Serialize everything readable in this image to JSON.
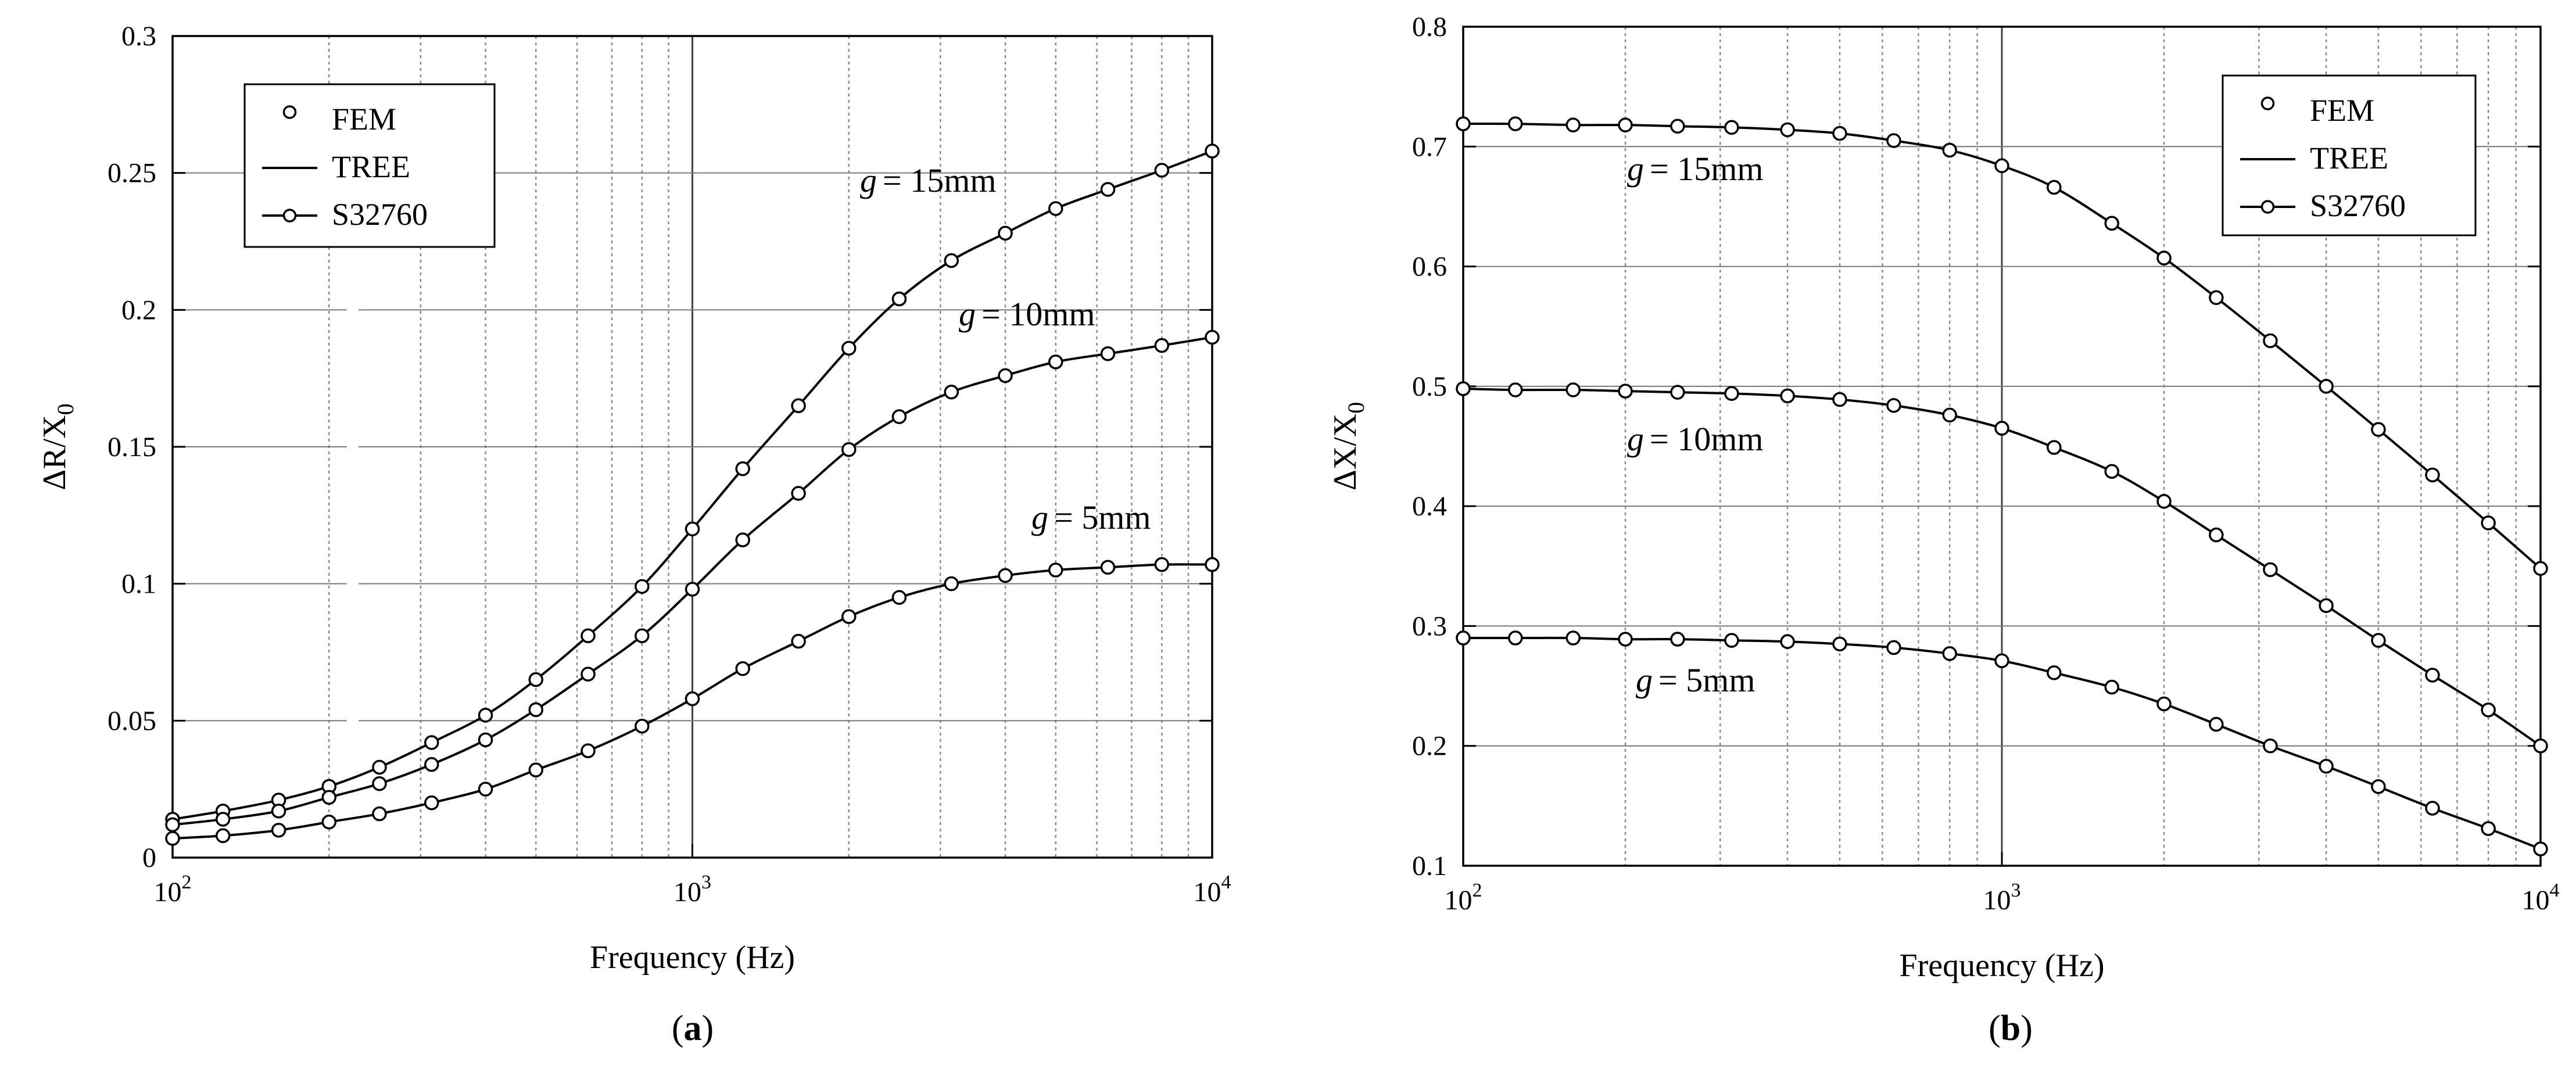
{
  "chart_data": [
    {
      "type": "line",
      "panel_label": "a",
      "panel_label_open": "(",
      "panel_label_close": ")",
      "xlabel": "Frequency (Hz)",
      "ylabel": "ΔR/X",
      "ylabel_subscript": "0",
      "x_scale": "log",
      "xlim": [
        100,
        10000
      ],
      "x_tick_values": [
        100,
        1000,
        10000
      ],
      "x_tick_base": "10",
      "x_tick_exponents": [
        "2",
        "3",
        "4"
      ],
      "ylim": [
        0,
        0.3
      ],
      "y_ticks": [
        "0",
        "0.05",
        "0.1",
        "0.15",
        "0.2",
        "0.25",
        "0.3"
      ],
      "grid": true,
      "legend": {
        "position": "top-left",
        "entries": [
          "FEM",
          "TREE",
          "S32760"
        ]
      },
      "label_var": "g",
      "frequencies": [
        100,
        125,
        160,
        200,
        250,
        315,
        400,
        500,
        630,
        800,
        1000,
        1250,
        1600,
        2000,
        2500,
        3150,
        4000,
        5000,
        6300,
        8000,
        10000
      ],
      "series": [
        {
          "name": "g = 15mm",
          "label_value": "= 15mm",
          "values": [
            0.014,
            0.017,
            0.021,
            0.026,
            0.033,
            0.042,
            0.052,
            0.065,
            0.081,
            0.099,
            0.12,
            0.142,
            0.165,
            0.186,
            0.204,
            0.218,
            0.228,
            0.237,
            0.244,
            0.251,
            0.258
          ]
        },
        {
          "name": "g = 10mm",
          "label_value": "= 10mm",
          "values": [
            0.012,
            0.014,
            0.017,
            0.022,
            0.027,
            0.034,
            0.043,
            0.054,
            0.067,
            0.081,
            0.098,
            0.116,
            0.133,
            0.149,
            0.161,
            0.17,
            0.176,
            0.181,
            0.184,
            0.187,
            0.19
          ]
        },
        {
          "name": "g = 5mm",
          "label_value": "= 5mm",
          "values": [
            0.007,
            0.008,
            0.01,
            0.013,
            0.016,
            0.02,
            0.025,
            0.032,
            0.039,
            0.048,
            0.058,
            0.069,
            0.079,
            0.088,
            0.095,
            0.1,
            0.103,
            0.105,
            0.106,
            0.107,
            0.107
          ]
        }
      ]
    },
    {
      "type": "line",
      "panel_label": "b",
      "panel_label_open": "(",
      "panel_label_close": ")",
      "xlabel": "Frequency (Hz)",
      "ylabel": "ΔX/X",
      "ylabel_subscript": "0",
      "x_scale": "log",
      "xlim": [
        100,
        10000
      ],
      "x_tick_values": [
        100,
        1000,
        10000
      ],
      "x_tick_base": "10",
      "x_tick_exponents": [
        "2",
        "3",
        "4"
      ],
      "ylim": [
        0.1,
        0.8
      ],
      "y_ticks": [
        "0.1",
        "0.2",
        "0.3",
        "0.4",
        "0.5",
        "0.6",
        "0.7",
        "0.8"
      ],
      "grid": true,
      "legend": {
        "position": "top-right",
        "entries": [
          "FEM",
          "TREE",
          "S32760"
        ]
      },
      "label_var": "g",
      "frequencies": [
        100,
        125,
        160,
        200,
        250,
        315,
        400,
        500,
        630,
        800,
        1000,
        1250,
        1600,
        2000,
        2500,
        3150,
        4000,
        5000,
        6300,
        8000,
        10000
      ],
      "series": [
        {
          "name": "g = 15mm",
          "label_value": "= 15mm",
          "values": [
            0.719,
            0.719,
            0.718,
            0.718,
            0.717,
            0.716,
            0.714,
            0.711,
            0.705,
            0.697,
            0.684,
            0.666,
            0.636,
            0.607,
            0.574,
            0.538,
            0.5,
            0.464,
            0.426,
            0.386,
            0.348
          ]
        },
        {
          "name": "g = 10mm",
          "label_value": "= 10mm",
          "values": [
            0.498,
            0.497,
            0.497,
            0.496,
            0.495,
            0.494,
            0.492,
            0.489,
            0.484,
            0.476,
            0.465,
            0.449,
            0.429,
            0.404,
            0.376,
            0.347,
            0.317,
            0.288,
            0.259,
            0.23,
            0.2
          ]
        },
        {
          "name": "g = 5mm",
          "label_value": "= 5mm",
          "values": [
            0.29,
            0.29,
            0.29,
            0.289,
            0.289,
            0.288,
            0.287,
            0.285,
            0.282,
            0.277,
            0.271,
            0.261,
            0.249,
            0.235,
            0.218,
            0.2,
            0.183,
            0.166,
            0.148,
            0.131,
            0.114
          ]
        }
      ]
    }
  ]
}
